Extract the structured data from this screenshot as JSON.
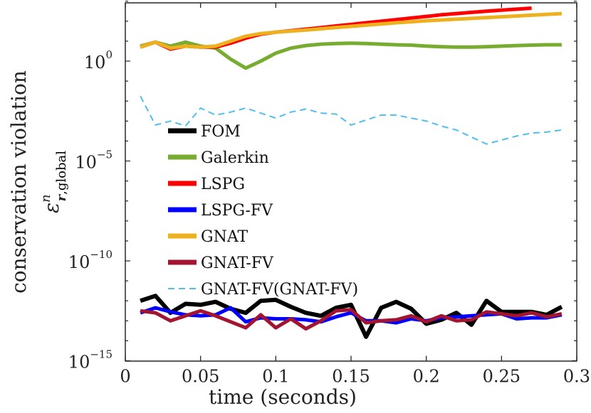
{
  "chart_data": {
    "type": "line",
    "xlabel": "time (seconds)",
    "ylabel": "conservation violation",
    "ylabel_symbol": {
      "base": "ε",
      "superscript": "n",
      "subscript_bold": "r",
      "subscript_rest": ",global"
    },
    "yscale": "log",
    "xlim": [
      0,
      0.3
    ],
    "ylim_exponent": [
      -15,
      3
    ],
    "x_ticks": [
      "0",
      "0.05",
      "0.1",
      "0.15",
      "0.2",
      "0.25",
      "0.3"
    ],
    "x_tick_values": [
      0,
      0.05,
      0.1,
      0.15,
      0.2,
      0.25,
      0.3
    ],
    "y_ticks": [
      {
        "base": "10",
        "exp": "0",
        "value": 0
      },
      {
        "base": "10",
        "exp": "−5",
        "value": -5
      },
      {
        "base": "10",
        "exp": "−10",
        "value": -10
      },
      {
        "base": "10",
        "exp": "−15",
        "value": -15
      }
    ],
    "legend_location": "inside, left",
    "series": [
      {
        "name": "FOM",
        "color": "#000000",
        "style": "solid",
        "weight": "thick",
        "x": [
          0.01,
          0.02,
          0.03,
          0.04,
          0.05,
          0.06,
          0.07,
          0.08,
          0.09,
          0.1,
          0.11,
          0.12,
          0.13,
          0.14,
          0.15,
          0.16,
          0.17,
          0.18,
          0.19,
          0.2,
          0.21,
          0.22,
          0.23,
          0.24,
          0.25,
          0.26,
          0.27,
          0.28,
          0.29
        ],
        "log10_y": [
          -12.0,
          -11.75,
          -12.6,
          -12.15,
          -12.2,
          -12.05,
          -12.4,
          -12.6,
          -12.0,
          -11.95,
          -12.3,
          -12.6,
          -12.75,
          -12.35,
          -12.2,
          -13.8,
          -12.35,
          -12.05,
          -12.4,
          -13.15,
          -12.95,
          -12.6,
          -13.2,
          -12.0,
          -12.55,
          -12.55,
          -12.55,
          -12.7,
          -12.3
        ]
      },
      {
        "name": "Galerkin",
        "color": "#77ac30",
        "style": "solid",
        "weight": "thick",
        "x": [
          0.01,
          0.02,
          0.03,
          0.04,
          0.05,
          0.06,
          0.07,
          0.08,
          0.09,
          0.1,
          0.11,
          0.12,
          0.13,
          0.14,
          0.15,
          0.16,
          0.17,
          0.18,
          0.19,
          0.2,
          0.21,
          0.22,
          0.23,
          0.24,
          0.25,
          0.26,
          0.27,
          0.28,
          0.29
        ],
        "log10_y": [
          0.75,
          0.95,
          0.75,
          0.95,
          0.75,
          0.65,
          0.1,
          -0.35,
          -0.0,
          0.4,
          0.65,
          0.78,
          0.85,
          0.88,
          0.9,
          0.88,
          0.85,
          0.82,
          0.8,
          0.75,
          0.72,
          0.7,
          0.7,
          0.72,
          0.75,
          0.78,
          0.8,
          0.82,
          0.82
        ]
      },
      {
        "name": "LSPG",
        "color": "#ff0000",
        "style": "solid",
        "weight": "thick",
        "x": [
          0.01,
          0.02,
          0.03,
          0.04,
          0.05,
          0.06,
          0.07,
          0.08,
          0.09,
          0.1,
          0.11,
          0.12,
          0.13,
          0.14,
          0.15,
          0.16,
          0.17,
          0.18,
          0.19,
          0.2,
          0.21,
          0.22,
          0.23,
          0.24,
          0.25,
          0.26,
          0.27
        ],
        "log10_y": [
          0.7,
          0.95,
          0.6,
          0.75,
          0.7,
          0.7,
          0.9,
          1.15,
          1.35,
          1.45,
          1.52,
          1.6,
          1.68,
          1.76,
          1.84,
          1.92,
          2.0,
          2.08,
          2.16,
          2.24,
          2.32,
          2.38,
          2.44,
          2.5,
          2.55,
          2.6,
          2.65
        ]
      },
      {
        "name": "LSPG-FV",
        "color": "#0000ff",
        "style": "solid",
        "weight": "thick",
        "x": [
          0.01,
          0.02,
          0.03,
          0.04,
          0.05,
          0.06,
          0.07,
          0.08,
          0.09,
          0.1,
          0.11,
          0.12,
          0.13,
          0.14,
          0.15,
          0.16,
          0.17,
          0.18,
          0.19,
          0.2,
          0.21,
          0.22,
          0.23,
          0.24,
          0.25,
          0.26,
          0.27,
          0.28,
          0.29
        ],
        "log10_y": [
          -12.6,
          -12.35,
          -12.55,
          -12.7,
          -12.75,
          -12.7,
          -12.35,
          -13.05,
          -12.85,
          -12.9,
          -12.9,
          -12.95,
          -13.05,
          -12.8,
          -12.6,
          -13.0,
          -13.0,
          -13.1,
          -12.9,
          -13.0,
          -12.85,
          -12.8,
          -12.75,
          -12.7,
          -12.65,
          -12.9,
          -12.85,
          -12.85,
          -12.7
        ]
      },
      {
        "name": "GNAT",
        "color": "#edb120",
        "style": "solid",
        "weight": "thick",
        "x": [
          0.01,
          0.02,
          0.03,
          0.04,
          0.05,
          0.06,
          0.07,
          0.08,
          0.09,
          0.1,
          0.11,
          0.12,
          0.13,
          0.14,
          0.15,
          0.16,
          0.17,
          0.18,
          0.19,
          0.2,
          0.21,
          0.22,
          0.23,
          0.24,
          0.25,
          0.26,
          0.27,
          0.28,
          0.29
        ],
        "log10_y": [
          0.7,
          0.95,
          0.65,
          0.75,
          0.7,
          0.75,
          1.0,
          1.25,
          1.38,
          1.45,
          1.5,
          1.56,
          1.62,
          1.68,
          1.74,
          1.8,
          1.86,
          1.92,
          1.97,
          2.02,
          2.06,
          2.1,
          2.14,
          2.18,
          2.22,
          2.26,
          2.3,
          2.34,
          2.38
        ]
      },
      {
        "name": "GNAT-FV",
        "color": "#a2142f",
        "style": "solid",
        "weight": "thick",
        "x": [
          0.01,
          0.02,
          0.03,
          0.04,
          0.05,
          0.06,
          0.07,
          0.08,
          0.09,
          0.1,
          0.11,
          0.12,
          0.13,
          0.14,
          0.15,
          0.16,
          0.17,
          0.18,
          0.19,
          0.2,
          0.21,
          0.22,
          0.23,
          0.24,
          0.25,
          0.26,
          0.27,
          0.28,
          0.29
        ],
        "log10_y": [
          -12.5,
          -12.6,
          -13.0,
          -12.75,
          -12.5,
          -12.75,
          -13.05,
          -13.35,
          -12.7,
          -13.35,
          -12.9,
          -13.4,
          -13.0,
          -12.5,
          -12.45,
          -13.1,
          -13.0,
          -12.95,
          -12.75,
          -13.05,
          -12.75,
          -13.0,
          -12.95,
          -12.55,
          -12.65,
          -12.75,
          -12.6,
          -12.8,
          -12.65
        ]
      },
      {
        "name": "GNAT-FV(GNAT-FV)",
        "color": "#4dbeee",
        "style": "dashed",
        "weight": "thin",
        "x": [
          0.01,
          0.02,
          0.03,
          0.04,
          0.05,
          0.06,
          0.07,
          0.08,
          0.09,
          0.1,
          0.11,
          0.12,
          0.13,
          0.14,
          0.15,
          0.16,
          0.17,
          0.18,
          0.19,
          0.2,
          0.21,
          0.22,
          0.23,
          0.24,
          0.25,
          0.26,
          0.27,
          0.28,
          0.29
        ],
        "log10_y": [
          -1.75,
          -3.2,
          -3.0,
          -3.25,
          -2.35,
          -2.7,
          -2.55,
          -2.35,
          -2.6,
          -2.85,
          -2.55,
          -2.4,
          -2.6,
          -2.65,
          -3.2,
          -2.95,
          -2.7,
          -2.7,
          -2.85,
          -3.0,
          -3.25,
          -3.45,
          -3.8,
          -4.15,
          -3.95,
          -3.75,
          -3.6,
          -3.55,
          -3.45
        ]
      }
    ]
  }
}
